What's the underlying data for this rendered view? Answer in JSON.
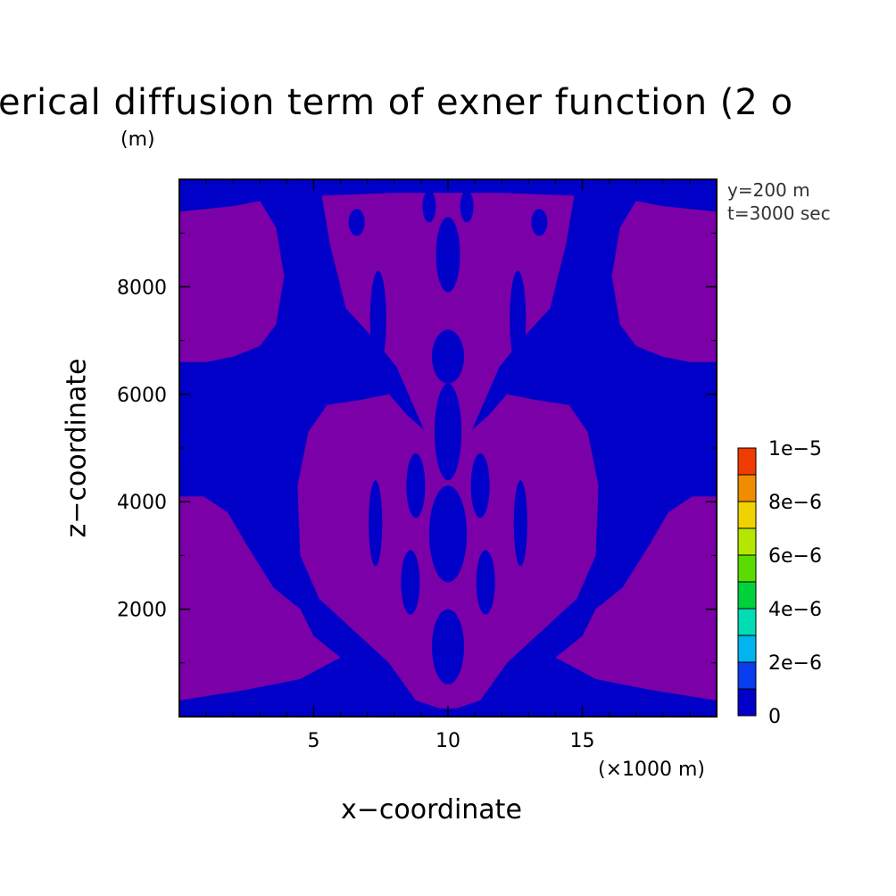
{
  "chart_data": {
    "type": "heatmap",
    "title": "erical diffusion term of exner function (2 o",
    "title_unit": "(m)",
    "xlabel": "x−coordinate",
    "xunit": "(×1000 m)",
    "ylabel": "z−coordinate",
    "annotations": [
      "y=200 m",
      "t=3000 sec"
    ],
    "xlim": [
      0,
      20
    ],
    "ylim": [
      0,
      10000
    ],
    "x_ticks": [
      {
        "value": 5,
        "label": "5"
      },
      {
        "value": 10,
        "label": "10"
      },
      {
        "value": 15,
        "label": "15"
      }
    ],
    "y_ticks": [
      {
        "value": 2000,
        "label": "2000"
      },
      {
        "value": 4000,
        "label": "4000"
      },
      {
        "value": 6000,
        "label": "6000"
      },
      {
        "value": 8000,
        "label": "8000"
      }
    ],
    "colorbar": {
      "levels": [
        0,
        1e-06,
        2e-06,
        3e-06,
        4e-06,
        5e-06,
        6e-06,
        7e-06,
        8e-06,
        9e-06,
        1e-05
      ],
      "colors": [
        "#0000c8",
        "#0a3cf0",
        "#00b4f0",
        "#00dcb4",
        "#00d23c",
        "#5adc00",
        "#b4e600",
        "#f0d200",
        "#f08c00",
        "#f03c00"
      ],
      "tick_labels": [
        {
          "value": 0,
          "label": "0"
        },
        {
          "value": 2e-06,
          "label": "2e−6"
        },
        {
          "value": 4e-06,
          "label": "4e−6"
        },
        {
          "value": 6e-06,
          "label": "6e−6"
        },
        {
          "value": 8e-06,
          "label": "8e−6"
        },
        {
          "value": 1e-05,
          "label": "1e−5"
        }
      ]
    },
    "field_colors": {
      "low": "#0000c8",
      "background_region": "#7b00a8"
    },
    "regions": [
      {
        "name": "top-band",
        "poly": [
          [
            0,
            9900
          ],
          [
            20,
            9900
          ],
          [
            20,
            9700
          ],
          [
            18,
            9750
          ],
          [
            14,
            9800
          ],
          [
            10,
            9800
          ],
          [
            6,
            9800
          ],
          [
            2,
            9750
          ],
          [
            0,
            9700
          ]
        ]
      },
      {
        "name": "left-upper",
        "poly": [
          [
            0,
            6600
          ],
          [
            0,
            9400
          ],
          [
            1,
            9450
          ],
          [
            2,
            9500
          ],
          [
            3,
            9600
          ],
          [
            3.6,
            9100
          ],
          [
            3.9,
            8200
          ],
          [
            3.6,
            7300
          ],
          [
            3.0,
            6900
          ],
          [
            2.0,
            6700
          ],
          [
            1.0,
            6600
          ]
        ]
      },
      {
        "name": "right-upper",
        "poly": [
          [
            20,
            6600
          ],
          [
            20,
            9400
          ],
          [
            19,
            9450
          ],
          [
            18,
            9500
          ],
          [
            17,
            9600
          ],
          [
            16.4,
            9100
          ],
          [
            16.1,
            8200
          ],
          [
            16.4,
            7300
          ],
          [
            17.0,
            6900
          ],
          [
            18.0,
            6700
          ],
          [
            19.0,
            6600
          ]
        ]
      },
      {
        "name": "center-upper",
        "poly": [
          [
            5.3,
            9700
          ],
          [
            8,
            9750
          ],
          [
            10,
            9750
          ],
          [
            12,
            9750
          ],
          [
            14.7,
            9700
          ],
          [
            14.4,
            8800
          ],
          [
            13.8,
            7600
          ],
          [
            12.7,
            7000
          ],
          [
            11.9,
            6500
          ],
          [
            11.3,
            5800
          ],
          [
            10.6,
            5000
          ],
          [
            10,
            4900
          ],
          [
            9.4,
            5000
          ],
          [
            8.7,
            5800
          ],
          [
            8.1,
            6500
          ],
          [
            7.3,
            7000
          ],
          [
            6.2,
            7600
          ],
          [
            5.6,
            8800
          ]
        ]
      },
      {
        "name": "center-body",
        "poly": [
          [
            4.8,
            5300
          ],
          [
            5.5,
            5800
          ],
          [
            6.8,
            5900
          ],
          [
            7.8,
            6000
          ],
          [
            8.5,
            5600
          ],
          [
            9.2,
            5300
          ],
          [
            10,
            5300
          ],
          [
            10.8,
            5300
          ],
          [
            11.5,
            5600
          ],
          [
            12.2,
            6000
          ],
          [
            13.2,
            5900
          ],
          [
            14.5,
            5800
          ],
          [
            15.2,
            5300
          ],
          [
            15.6,
            4300
          ],
          [
            15.5,
            3000
          ],
          [
            14.8,
            2200
          ],
          [
            13.5,
            1600
          ],
          [
            12.2,
            1000
          ],
          [
            11.2,
            300
          ],
          [
            10,
            100
          ],
          [
            8.8,
            300
          ],
          [
            7.8,
            1000
          ],
          [
            6.5,
            1600
          ],
          [
            5.2,
            2200
          ],
          [
            4.5,
            3000
          ],
          [
            4.4,
            4300
          ]
        ]
      },
      {
        "name": "left-lower",
        "poly": [
          [
            0,
            300
          ],
          [
            2.5,
            500
          ],
          [
            4.5,
            700
          ],
          [
            6,
            1100
          ],
          [
            5,
            1500
          ],
          [
            4.5,
            2000
          ],
          [
            3.5,
            2400
          ],
          [
            2.5,
            3200
          ],
          [
            1.8,
            3800
          ],
          [
            0.9,
            4100
          ],
          [
            0,
            4100
          ]
        ]
      },
      {
        "name": "right-lower",
        "poly": [
          [
            20,
            300
          ],
          [
            17.5,
            500
          ],
          [
            15.5,
            700
          ],
          [
            14,
            1100
          ],
          [
            15,
            1500
          ],
          [
            15.5,
            2000
          ],
          [
            16.5,
            2400
          ],
          [
            17.5,
            3200
          ],
          [
            18.2,
            3800
          ],
          [
            19.1,
            4100
          ],
          [
            20,
            4100
          ]
        ]
      },
      {
        "name": "bottom-band",
        "poly": [
          [
            0,
            80
          ],
          [
            20,
            80
          ],
          [
            20,
            300
          ],
          [
            17,
            250
          ],
          [
            13,
            200
          ],
          [
            10,
            150
          ],
          [
            7,
            200
          ],
          [
            3,
            250
          ],
          [
            0,
            300
          ]
        ]
      }
    ],
    "holes": [
      {
        "name": "c1",
        "cx": 10.0,
        "cy": 8600,
        "rx": 0.45,
        "ry": 700
      },
      {
        "name": "c2",
        "cx": 10.0,
        "cy": 6700,
        "rx": 0.6,
        "ry": 500
      },
      {
        "name": "c3",
        "cx": 10.0,
        "cy": 5300,
        "rx": 0.5,
        "ry": 900
      },
      {
        "name": "c4",
        "cx": 10.0,
        "cy": 3400,
        "rx": 0.7,
        "ry": 900
      },
      {
        "name": "c5",
        "cx": 10.0,
        "cy": 1300,
        "rx": 0.6,
        "ry": 700
      },
      {
        "name": "c6",
        "cx": 8.8,
        "cy": 4300,
        "rx": 0.35,
        "ry": 600
      },
      {
        "name": "c7",
        "cx": 11.2,
        "cy": 4300,
        "rx": 0.35,
        "ry": 600
      },
      {
        "name": "c8",
        "cx": 8.6,
        "cy": 2500,
        "rx": 0.35,
        "ry": 600
      },
      {
        "name": "c9",
        "cx": 11.4,
        "cy": 2500,
        "rx": 0.35,
        "ry": 600
      },
      {
        "name": "c10",
        "cx": 7.3,
        "cy": 3600,
        "rx": 0.25,
        "ry": 800
      },
      {
        "name": "c11",
        "cx": 12.7,
        "cy": 3600,
        "rx": 0.25,
        "ry": 800
      },
      {
        "name": "c12",
        "cx": 7.4,
        "cy": 7400,
        "rx": 0.3,
        "ry": 900
      },
      {
        "name": "c13",
        "cx": 12.6,
        "cy": 7400,
        "rx": 0.3,
        "ry": 900
      },
      {
        "name": "c14",
        "cx": 6.6,
        "cy": 9200,
        "rx": 0.3,
        "ry": 250
      },
      {
        "name": "c15",
        "cx": 13.4,
        "cy": 9200,
        "rx": 0.3,
        "ry": 250
      },
      {
        "name": "c16",
        "cx": 9.3,
        "cy": 9500,
        "rx": 0.25,
        "ry": 300
      },
      {
        "name": "c17",
        "cx": 10.7,
        "cy": 9500,
        "rx": 0.25,
        "ry": 300
      }
    ]
  }
}
